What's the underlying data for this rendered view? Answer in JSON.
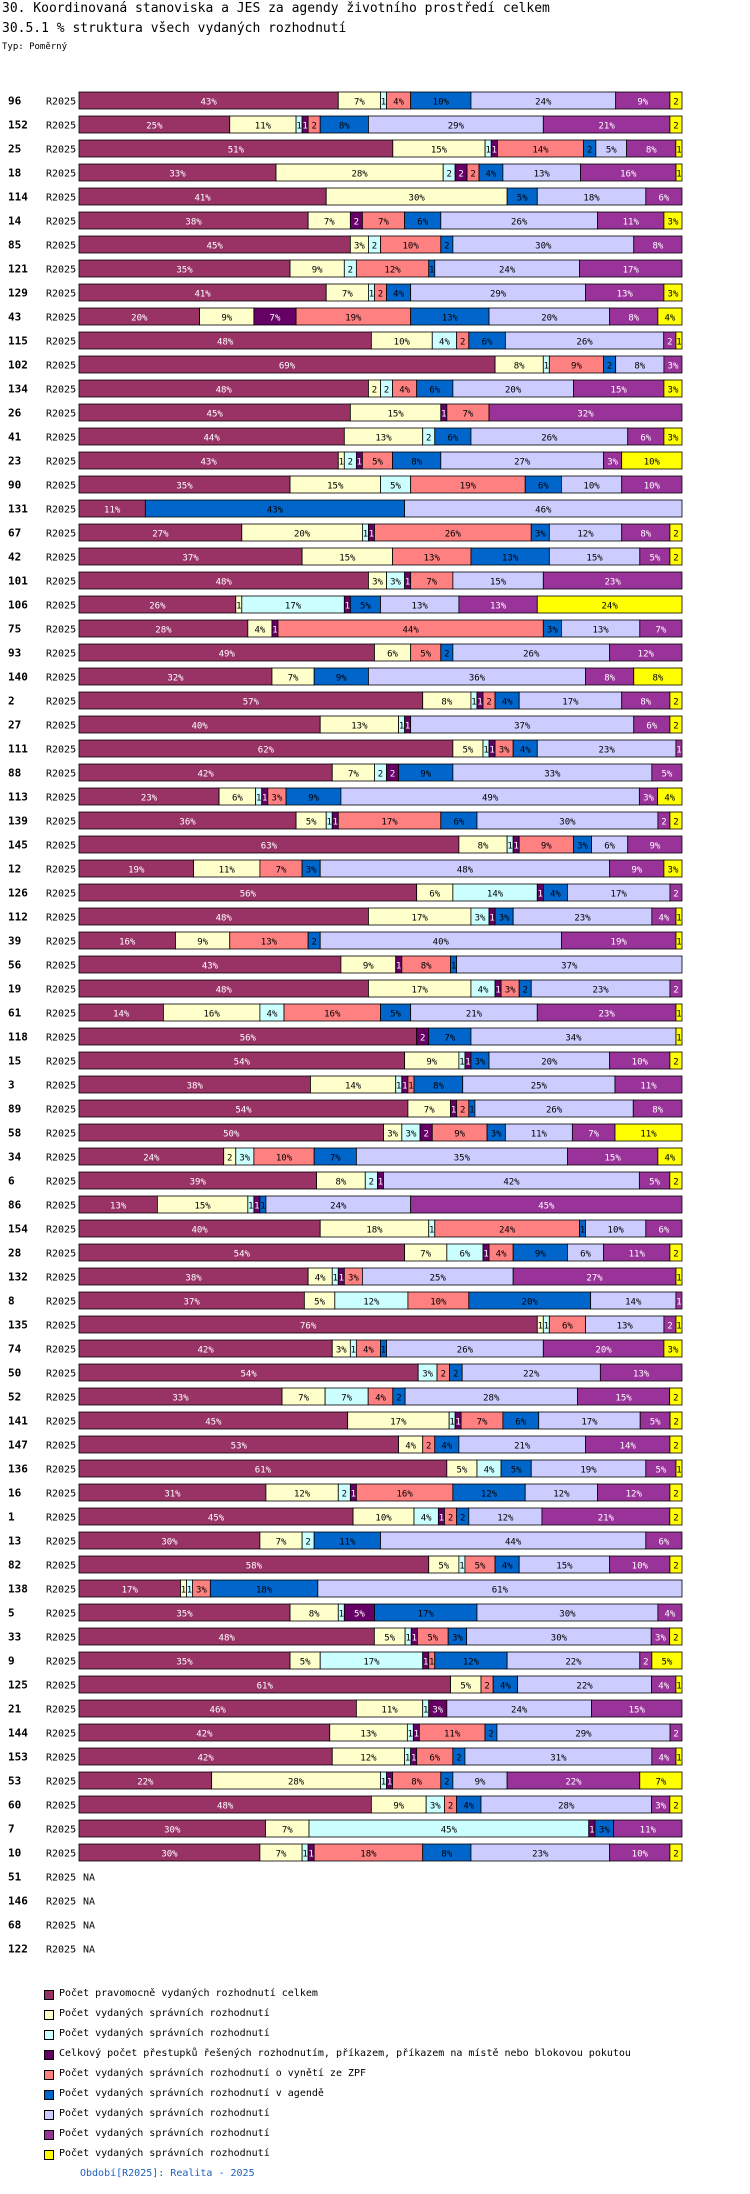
{
  "header": {
    "title1": "30. Koordinovaná stanoviska a JES za agendy životního prostředí celkem",
    "title2": "30.5.1 % struktura všech vydaných rozhodnutí",
    "type_label": "Typ: Poměrný"
  },
  "footer": {
    "text": "Období[R2025]: Realita - 2025"
  },
  "colors": [
    "#993366",
    "#ffffcc",
    "#ccffff",
    "#660066",
    "#ff8080",
    "#0066cc",
    "#ccccff",
    "#993399",
    "#ffff00"
  ],
  "legend": [
    "Počet pravomocně vydaných rozhodnutí celkem",
    "Počet vydaných správních rozhodnutí",
    "Počet vydaných správních rozhodnutí",
    "Celkový počet přestupků řešených rozhodnutím, příkazem, příkazem na místě nebo blokovou pokutou",
    "Počet vydaných správních rozhodnutí o vynětí ze ZPF",
    "Počet vydaných správních rozhodnutí v agendě",
    "Počet vydaných správních rozhodnutí",
    "Počet vydaných správních rozhodnutí",
    "Počet vydaných správních rozhodnutí"
  ],
  "chart_data": {
    "type": "bar",
    "orientation": "horizontal",
    "stacked": true,
    "normalized": true,
    "title": "30.5.1 % struktura všech vydaných rozhodnutí",
    "period": "R2025",
    "value_unit": "%",
    "na_label": "NA",
    "series_names": [
      "Počet pravomocně vydaných rozhodnutí celkem",
      "Počet vydaných správních rozhodnutí",
      "Počet vydaných správních rozhodnutí",
      "Celkový počet přestupků řešených rozhodnutím, příkazem, příkazem na místě nebo blokovou pokutou",
      "Počet vydaných správních rozhodnutí o vynětí ze ZPF",
      "Počet vydaných správních rozhodnutí v agendě",
      "Počet vydaných správních rozhodnutí",
      "Počet vydaných správních rozhodnutí",
      "Počet vydaných správních rozhodnutí"
    ],
    "rows": [
      {
        "id": "96",
        "values": [
          43,
          7,
          1,
          0,
          4,
          10,
          24,
          9,
          2
        ]
      },
      {
        "id": "152",
        "values": [
          25,
          11,
          1,
          1,
          2,
          8,
          29,
          21,
          2
        ]
      },
      {
        "id": "25",
        "values": [
          51,
          15,
          1,
          1,
          14,
          2,
          5,
          8,
          1
        ]
      },
      {
        "id": "18",
        "values": [
          33,
          28,
          2,
          2,
          2,
          4,
          13,
          16,
          1
        ]
      },
      {
        "id": "114",
        "values": [
          41,
          30,
          0,
          0,
          0,
          5,
          18,
          6,
          0
        ]
      },
      {
        "id": "14",
        "values": [
          38,
          7,
          0,
          2,
          7,
          6,
          26,
          11,
          3
        ]
      },
      {
        "id": "85",
        "values": [
          45,
          3,
          2,
          0,
          10,
          2,
          30,
          8,
          0
        ]
      },
      {
        "id": "121",
        "values": [
          35,
          9,
          2,
          0,
          12,
          1,
          24,
          17,
          0
        ]
      },
      {
        "id": "129",
        "values": [
          41,
          7,
          1,
          0,
          2,
          4,
          29,
          13,
          3
        ]
      },
      {
        "id": "43",
        "values": [
          20,
          9,
          0,
          7,
          19,
          13,
          20,
          8,
          4
        ]
      },
      {
        "id": "115",
        "values": [
          48,
          10,
          4,
          0,
          2,
          6,
          26,
          2,
          1
        ]
      },
      {
        "id": "102",
        "values": [
          69,
          8,
          1,
          0,
          9,
          2,
          8,
          3,
          0
        ]
      },
      {
        "id": "134",
        "values": [
          48,
          2,
          2,
          0,
          4,
          6,
          20,
          15,
          3
        ]
      },
      {
        "id": "26",
        "values": [
          45,
          15,
          0,
          1,
          7,
          0,
          0,
          32,
          0
        ]
      },
      {
        "id": "41",
        "values": [
          44,
          13,
          2,
          0,
          0,
          6,
          26,
          6,
          3
        ]
      },
      {
        "id": "23",
        "values": [
          43,
          1,
          2,
          1,
          5,
          8,
          27,
          3,
          10
        ]
      },
      {
        "id": "90",
        "values": [
          35,
          15,
          5,
          0,
          19,
          6,
          10,
          10,
          0
        ]
      },
      {
        "id": "131",
        "values": [
          11,
          0,
          0,
          0,
          0,
          43,
          46,
          0,
          0
        ]
      },
      {
        "id": "67",
        "values": [
          27,
          20,
          1,
          1,
          26,
          3,
          12,
          8,
          2
        ]
      },
      {
        "id": "42",
        "values": [
          37,
          15,
          0,
          0,
          13,
          13,
          15,
          5,
          2
        ]
      },
      {
        "id": "101",
        "values": [
          48,
          3,
          3,
          1,
          7,
          0,
          15,
          23,
          0
        ]
      },
      {
        "id": "106",
        "values": [
          26,
          1,
          17,
          1,
          0,
          5,
          13,
          13,
          24
        ]
      },
      {
        "id": "75",
        "values": [
          28,
          4,
          0,
          1,
          44,
          3,
          13,
          7,
          0
        ]
      },
      {
        "id": "93",
        "values": [
          49,
          6,
          0,
          0,
          5,
          2,
          26,
          12,
          0
        ]
      },
      {
        "id": "140",
        "values": [
          32,
          7,
          0,
          0,
          0,
          9,
          36,
          8,
          8
        ]
      },
      {
        "id": "2",
        "values": [
          57,
          8,
          1,
          1,
          2,
          4,
          17,
          8,
          2
        ]
      },
      {
        "id": "27",
        "values": [
          40,
          13,
          1,
          1,
          0,
          0,
          37,
          6,
          2
        ]
      },
      {
        "id": "111",
        "values": [
          62,
          5,
          1,
          1,
          3,
          4,
          23,
          1,
          0
        ]
      },
      {
        "id": "88",
        "values": [
          42,
          7,
          2,
          2,
          0,
          9,
          33,
          5,
          0
        ]
      },
      {
        "id": "113",
        "values": [
          23,
          6,
          1,
          1,
          3,
          9,
          49,
          3,
          4
        ]
      },
      {
        "id": "139",
        "values": [
          36,
          5,
          1,
          1,
          17,
          6,
          30,
          2,
          2
        ]
      },
      {
        "id": "145",
        "values": [
          63,
          8,
          1,
          1,
          9,
          3,
          6,
          9,
          0
        ]
      },
      {
        "id": "12",
        "values": [
          19,
          11,
          0,
          0,
          7,
          3,
          48,
          9,
          3
        ]
      },
      {
        "id": "126",
        "values": [
          56,
          6,
          14,
          1,
          0,
          4,
          17,
          2,
          0
        ]
      },
      {
        "id": "112",
        "values": [
          48,
          17,
          3,
          1,
          0,
          3,
          23,
          4,
          1
        ]
      },
      {
        "id": "39",
        "values": [
          16,
          9,
          0,
          0,
          13,
          2,
          40,
          19,
          1
        ]
      },
      {
        "id": "56",
        "values": [
          43,
          9,
          0,
          1,
          8,
          1,
          37,
          0,
          0
        ]
      },
      {
        "id": "19",
        "values": [
          48,
          17,
          4,
          1,
          3,
          2,
          23,
          2,
          0
        ]
      },
      {
        "id": "61",
        "values": [
          14,
          16,
          4,
          0,
          16,
          5,
          21,
          23,
          1
        ]
      },
      {
        "id": "118",
        "values": [
          56,
          0,
          0,
          2,
          0,
          7,
          34,
          0,
          1
        ]
      },
      {
        "id": "15",
        "values": [
          54,
          9,
          1,
          1,
          0,
          3,
          20,
          10,
          2
        ]
      },
      {
        "id": "3",
        "values": [
          38,
          14,
          1,
          1,
          1,
          8,
          25,
          11,
          0
        ]
      },
      {
        "id": "89",
        "values": [
          54,
          7,
          0,
          1,
          2,
          1,
          26,
          8,
          0
        ]
      },
      {
        "id": "58",
        "values": [
          50,
          3,
          3,
          2,
          9,
          3,
          11,
          7,
          11
        ]
      },
      {
        "id": "34",
        "values": [
          24,
          2,
          3,
          0,
          10,
          7,
          35,
          15,
          4
        ]
      },
      {
        "id": "6",
        "values": [
          39,
          8,
          2,
          1,
          0,
          0,
          42,
          5,
          2
        ]
      },
      {
        "id": "86",
        "values": [
          13,
          15,
          1,
          1,
          0,
          1,
          24,
          45,
          0
        ]
      },
      {
        "id": "154",
        "values": [
          40,
          18,
          1,
          0,
          24,
          1,
          10,
          6,
          0
        ]
      },
      {
        "id": "28",
        "values": [
          54,
          7,
          6,
          1,
          4,
          9,
          6,
          11,
          2
        ]
      },
      {
        "id": "132",
        "values": [
          38,
          4,
          1,
          1,
          3,
          0,
          25,
          27,
          1
        ]
      },
      {
        "id": "8",
        "values": [
          37,
          5,
          12,
          0,
          10,
          20,
          14,
          1,
          0
        ]
      },
      {
        "id": "135",
        "values": [
          76,
          1,
          1,
          0,
          6,
          0,
          13,
          2,
          1
        ]
      },
      {
        "id": "74",
        "values": [
          42,
          3,
          1,
          0,
          4,
          1,
          26,
          20,
          3
        ]
      },
      {
        "id": "50",
        "values": [
          54,
          0,
          3,
          0,
          2,
          2,
          22,
          13,
          0
        ]
      },
      {
        "id": "52",
        "values": [
          33,
          7,
          7,
          0,
          4,
          2,
          28,
          15,
          2
        ]
      },
      {
        "id": "141",
        "values": [
          45,
          17,
          1,
          1,
          7,
          6,
          17,
          5,
          2
        ]
      },
      {
        "id": "147",
        "values": [
          53,
          4,
          0,
          0,
          2,
          4,
          21,
          14,
          2
        ]
      },
      {
        "id": "136",
        "values": [
          61,
          5,
          4,
          0,
          0,
          5,
          19,
          5,
          1
        ]
      },
      {
        "id": "16",
        "values": [
          31,
          12,
          2,
          1,
          16,
          12,
          12,
          12,
          2
        ]
      },
      {
        "id": "1",
        "values": [
          45,
          10,
          4,
          1,
          2,
          2,
          12,
          21,
          2
        ]
      },
      {
        "id": "13",
        "values": [
          30,
          7,
          2,
          0,
          0,
          11,
          44,
          6,
          0
        ]
      },
      {
        "id": "82",
        "values": [
          58,
          5,
          1,
          0,
          5,
          4,
          15,
          10,
          2
        ]
      },
      {
        "id": "138",
        "values": [
          17,
          1,
          1,
          0,
          3,
          18,
          61,
          0,
          0
        ]
      },
      {
        "id": "5",
        "values": [
          35,
          8,
          1,
          5,
          0,
          17,
          30,
          4,
          0
        ]
      },
      {
        "id": "33",
        "values": [
          48,
          5,
          1,
          1,
          5,
          3,
          30,
          3,
          2
        ]
      },
      {
        "id": "9",
        "values": [
          35,
          5,
          17,
          1,
          1,
          12,
          22,
          2,
          5
        ]
      },
      {
        "id": "125",
        "values": [
          61,
          5,
          0,
          0,
          2,
          4,
          22,
          4,
          1
        ]
      },
      {
        "id": "21",
        "values": [
          46,
          11,
          1,
          3,
          0,
          0,
          24,
          15,
          0
        ]
      },
      {
        "id": "144",
        "values": [
          42,
          13,
          1,
          1,
          11,
          2,
          29,
          2,
          0
        ]
      },
      {
        "id": "153",
        "values": [
          42,
          12,
          1,
          1,
          6,
          2,
          31,
          4,
          1
        ]
      },
      {
        "id": "53",
        "values": [
          22,
          28,
          1,
          1,
          8,
          2,
          9,
          22,
          7
        ]
      },
      {
        "id": "60",
        "values": [
          48,
          9,
          3,
          0,
          2,
          4,
          28,
          3,
          2
        ]
      },
      {
        "id": "7",
        "values": [
          30,
          7,
          45,
          1,
          0,
          3,
          0,
          11,
          0
        ]
      },
      {
        "id": "10",
        "values": [
          30,
          7,
          1,
          1,
          18,
          8,
          23,
          10,
          2
        ]
      },
      {
        "id": "51",
        "values": null
      },
      {
        "id": "146",
        "values": null
      },
      {
        "id": "68",
        "values": null
      },
      {
        "id": "122",
        "values": null
      }
    ]
  }
}
